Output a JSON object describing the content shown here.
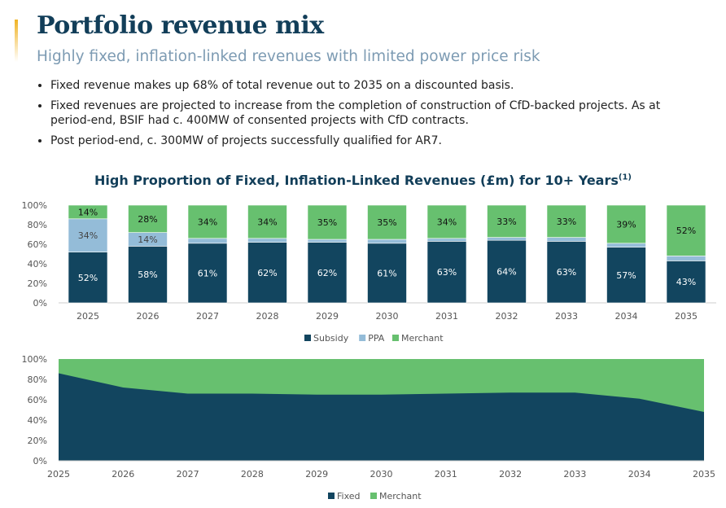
{
  "header": {
    "title": "Portfolio revenue mix",
    "subtitle": "Highly fixed, inflation-linked revenues with limited power price risk"
  },
  "bullets": [
    "Fixed revenue makes up 68% of total revenue out to 2035 on a discounted basis.",
    "Fixed revenues are projected to increase from the completion of construction of CfD-backed projects. As at period-end, BSIF had c. 400MW of consented projects with CfD contracts.",
    "Post period-end, c. 300MW of projects successfully qualified for AR7."
  ],
  "colors": {
    "subsidy": "#12455f",
    "ppa": "#94bcd8",
    "merchant": "#67c06f",
    "fixed": "#12455f",
    "accent": "#f0b323"
  },
  "chart_data": [
    {
      "type": "bar",
      "stacked": true,
      "title": "High Proportion of Fixed, Inflation-Linked Revenues (£m) for 10+ Years",
      "title_sup": "(1)",
      "categories": [
        "2025",
        "2026",
        "2027",
        "2028",
        "2029",
        "2030",
        "2031",
        "2032",
        "2033",
        "2034",
        "2035"
      ],
      "series": [
        {
          "name": "Subsidy",
          "key": "subsidy",
          "values": [
            52,
            58,
            61,
            62,
            62,
            61,
            63,
            64,
            63,
            57,
            43
          ],
          "labeled": true
        },
        {
          "name": "PPA",
          "key": "ppa",
          "values": [
            34,
            14,
            5,
            4,
            3,
            4,
            3,
            3,
            4,
            4,
            5
          ],
          "labeled": [
            true,
            true,
            false,
            false,
            false,
            false,
            false,
            false,
            false,
            false,
            false
          ]
        },
        {
          "name": "Merchant",
          "key": "merchant",
          "values": [
            14,
            28,
            34,
            34,
            35,
            35,
            34,
            33,
            33,
            39,
            52
          ],
          "labeled": true
        }
      ],
      "yticks": [
        "0%",
        "20%",
        "40%",
        "60%",
        "80%",
        "100%"
      ],
      "ylim": [
        0,
        100
      ],
      "legend": "bottom"
    },
    {
      "type": "area",
      "stacked": true,
      "x": [
        "2025",
        "2026",
        "2027",
        "2028",
        "2029",
        "2030",
        "2031",
        "2032",
        "2033",
        "2034",
        "2035"
      ],
      "series": [
        {
          "name": "Fixed",
          "key": "fixed",
          "values": [
            86,
            72,
            66,
            66,
            65,
            65,
            66,
            67,
            67,
            61,
            48
          ]
        },
        {
          "name": "Merchant",
          "key": "merchant",
          "values": [
            14,
            28,
            34,
            34,
            35,
            35,
            34,
            33,
            33,
            39,
            52
          ]
        }
      ],
      "yticks": [
        "0%",
        "20%",
        "40%",
        "60%",
        "80%",
        "100%"
      ],
      "ylim": [
        0,
        100
      ],
      "legend": "bottom"
    }
  ]
}
